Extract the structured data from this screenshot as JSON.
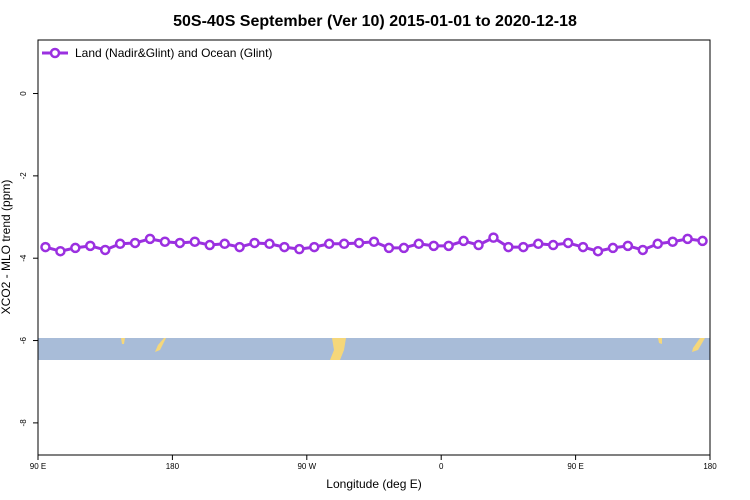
{
  "chart_data": {
    "type": "line",
    "title": "50S-40S September (Ver 10)   2015-01-01 to 2020-12-18",
    "x_label": "Longitude (deg E)",
    "y_label": "XCO2 - MLO trend (ppm)",
    "x": [
      95,
      105,
      115,
      125,
      135,
      145,
      155,
      165,
      175,
      185,
      195,
      205,
      215,
      225,
      235,
      245,
      255,
      265,
      275,
      285,
      295,
      305,
      315,
      325,
      335,
      345,
      355,
      365,
      375,
      385,
      395,
      405,
      415,
      425,
      435,
      445,
      455,
      465,
      475,
      485,
      495,
      505,
      515,
      525,
      535
    ],
    "series": [
      {
        "name": "Land (Nadir&Glint) and Ocean (Glint)",
        "color": "#9b30e0",
        "values": [
          -3.73,
          -3.83,
          -3.75,
          -3.7,
          -3.8,
          -3.65,
          -3.63,
          -3.53,
          -3.6,
          -3.63,
          -3.6,
          -3.68,
          -3.65,
          -3.73,
          -3.63,
          -3.65,
          -3.73,
          -3.78,
          -3.73,
          -3.65,
          -3.65,
          -3.63,
          -3.6,
          -3.75,
          -3.75,
          -3.65,
          -3.7,
          -3.7,
          -3.58,
          -3.68,
          -3.5,
          -3.73,
          -3.73,
          -3.65,
          -3.68,
          -3.63,
          -3.73,
          -3.83,
          -3.75,
          -3.7,
          -3.8,
          -3.65,
          -3.6,
          -3.53,
          -3.58
        ]
      }
    ],
    "xlim": [
      90,
      540
    ],
    "xticks": [
      {
        "value": 90,
        "label": "90 E"
      },
      180,
      {
        "value": 270,
        "label": "90 W"
      },
      {
        "value": 360,
        "label": "0"
      },
      {
        "value": 450,
        "label": "90 E"
      },
      {
        "value": 540,
        "label": "180"
      }
    ],
    "ylim": [
      -8.78,
      1.3
    ],
    "yticks": [
      0,
      -2,
      -4,
      -6,
      -8
    ],
    "legend": "upper left"
  }
}
